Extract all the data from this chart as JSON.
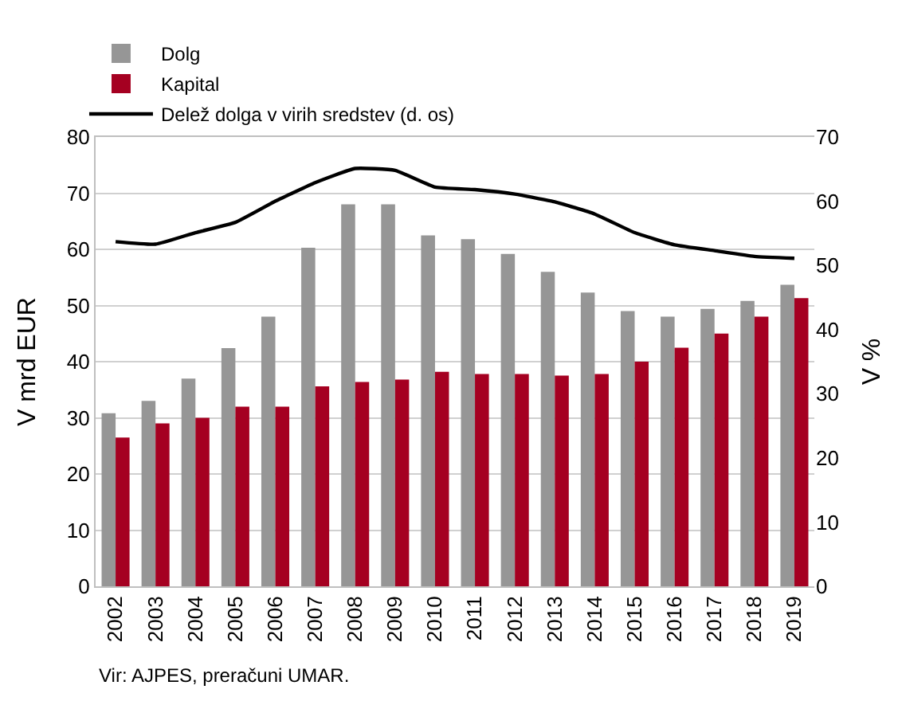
{
  "chart_data": {
    "type": "bar",
    "ylabel": "V mrd EUR",
    "y2label": "V %",
    "categories": [
      "2002",
      "2003",
      "2004",
      "2005",
      "2006",
      "2007",
      "2008",
      "2009",
      "2010",
      "2011",
      "2012",
      "2013",
      "2014",
      "2015",
      "2016",
      "2017",
      "2018",
      "2019"
    ],
    "series": [
      {
        "name": "Dolg",
        "color": "#969696",
        "values": [
          30.8,
          33,
          37,
          42.4,
          48,
          60.3,
          68,
          68,
          62.5,
          61.8,
          59.2,
          56,
          52.3,
          49,
          48,
          49.4,
          50.8,
          53.7
        ]
      },
      {
        "name": "Kapital",
        "color": "#a50021",
        "values": [
          26.5,
          29,
          30,
          32,
          32,
          35.6,
          36.4,
          36.8,
          38.2,
          37.8,
          37.8,
          37.5,
          37.8,
          40,
          42.5,
          45,
          48,
          51.3
        ]
      },
      {
        "name": "Delež dolga v virih sredstev (d. os)",
        "type": "line",
        "axis": "y2",
        "color": "#000000",
        "values": [
          53.7,
          53.3,
          55.1,
          56.7,
          60,
          62.9,
          65.1,
          64.8,
          62.2,
          61.8,
          61.1,
          59.9,
          58,
          55.1,
          53.2,
          52.3,
          51.4,
          51.1
        ]
      }
    ],
    "ylim": [
      0,
      80
    ],
    "yticks": [
      0,
      10,
      20,
      30,
      40,
      50,
      60,
      70,
      80
    ],
    "y2lim": [
      0,
      70
    ],
    "y2ticks": [
      0,
      10,
      20,
      30,
      40,
      50,
      60,
      70
    ],
    "grid": "y",
    "legend": "top left",
    "marker": "none",
    "line_style": "solid",
    "annotations": [
      "Vir: AJPES, preračuni UMAR."
    ]
  }
}
